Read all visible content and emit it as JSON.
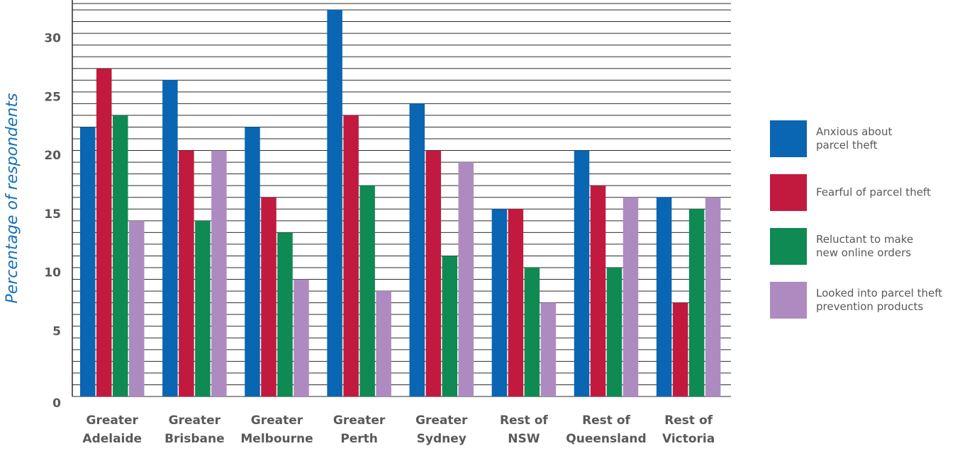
{
  "chart_data": {
    "type": "bar",
    "title": "",
    "xlabel": "",
    "ylabel": "Percentage of respondents",
    "ylim": [
      0,
      33
    ],
    "yticks": [
      0,
      5,
      10,
      15,
      20,
      25,
      30
    ],
    "grid": true,
    "legend_position": "right",
    "categories": [
      "Greater\nAdelaide",
      "Greater\nBrisbane",
      "Greater\nMelbourne",
      "Greater\nPerth",
      "Greater\nSydney",
      "Rest of\nNSW",
      "Rest of\nQueensland",
      "Rest of\nVictoria"
    ],
    "series": [
      {
        "name": "Anxious about\nparcel theft",
        "color": "#0a65b2",
        "values": [
          23,
          27,
          23,
          33,
          25,
          16,
          21,
          17
        ]
      },
      {
        "name": "Fearful of parcel theft",
        "color": "#c11a3e",
        "values": [
          28,
          21,
          17,
          24,
          21,
          16,
          18,
          8
        ]
      },
      {
        "name": "Reluctant to make\nnew online orders",
        "color": "#0f8a52",
        "values": [
          24,
          15,
          14,
          18,
          12,
          11,
          11,
          16
        ]
      },
      {
        "name": "Looked into parcel theft\nprevention products",
        "color": "#ad8bc0",
        "values": [
          15,
          21,
          10,
          9,
          20,
          8,
          17,
          17
        ]
      }
    ],
    "ylabel_color": "#1670b7"
  }
}
